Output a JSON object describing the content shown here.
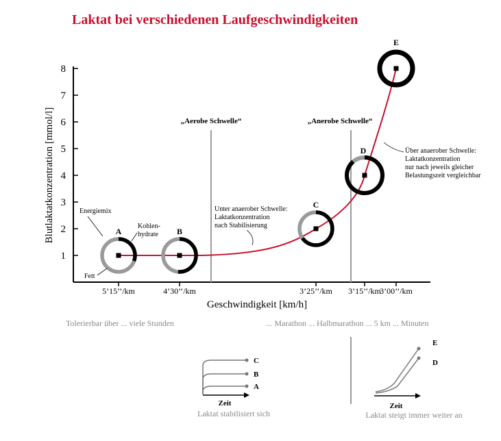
{
  "colors": {
    "curve": "#c8102e",
    "title": "#c8102e",
    "ring_light": "#9a9a9a",
    "ring_dark": "#000000",
    "threshold_line": "#9a9a9a",
    "caption": "#888888"
  },
  "chart_data": {
    "type": "line",
    "title": "Laktat bei verschiedenen Laufgeschwindigkeiten",
    "xlabel": "Geschwindigkeit [km/h]",
    "ylabel": "Blutlaktatkonzentration [mmol/l]",
    "ylim": [
      0.7,
      8.4
    ],
    "yticks": [
      "1",
      "2",
      "3",
      "4",
      "5",
      "6",
      "7",
      "8"
    ],
    "xticks": [
      {
        "label": "5’15’’/km",
        "pace_s": 315
      },
      {
        "label": "4’30’’/km",
        "pace_s": 270
      },
      {
        "label": "3’25’’/km",
        "pace_s": 205
      },
      {
        "label": "3’15’’/km",
        "pace_s": 195
      },
      {
        "label": "3’00’’/km",
        "pace_s": 180
      }
    ],
    "points": [
      {
        "label": "A",
        "pace_s": 315,
        "y": 1.0
      },
      {
        "label": "B",
        "pace_s": 270,
        "y": 1.0
      },
      {
        "label": "C",
        "pace_s": 205,
        "y": 2.0
      },
      {
        "label": "D",
        "pace_s": 195,
        "y": 4.0
      },
      {
        "label": "E",
        "pace_s": 180,
        "y": 8.0
      }
    ],
    "thresholds": [
      {
        "label": "„Aerobe Schwelle“",
        "pace_s": 250
      },
      {
        "label": "„Anerobe Schwelle“",
        "pace_s": 200
      }
    ],
    "ring_labels": {
      "energy_mix": "Energiemix",
      "carbs_line1": "Kohlen-",
      "carbs_line2": "hydrate",
      "fat": "Fett"
    },
    "annotations": {
      "below_threshold": [
        "Unter anaerober Schwelle:",
        "Laktatkonzentration",
        "nach Stabilisierung"
      ],
      "above_threshold": [
        "Über anaerober Schwelle:",
        "Laktatkonzentration",
        "nur nach jeweils gleicher",
        "Belastungszeit vergleichbar"
      ]
    },
    "duration_left": "Tolerierbar über ... viele Stunden",
    "duration_right": "... Marathon ... Halbmarathon ... 5 km ... Minuten",
    "insets": [
      {
        "caption": "Laktat stabilisiert sich",
        "axis_label": "Zeit",
        "series": [
          {
            "label": "C",
            "level": 3
          },
          {
            "label": "B",
            "level": 2
          },
          {
            "label": "A",
            "level": 1
          }
        ]
      },
      {
        "caption": "Laktat steigt immer weiter an",
        "axis_label": "Zeit",
        "series": [
          {
            "label": "E",
            "level": 5
          },
          {
            "label": "D",
            "level": 4
          }
        ]
      }
    ]
  }
}
